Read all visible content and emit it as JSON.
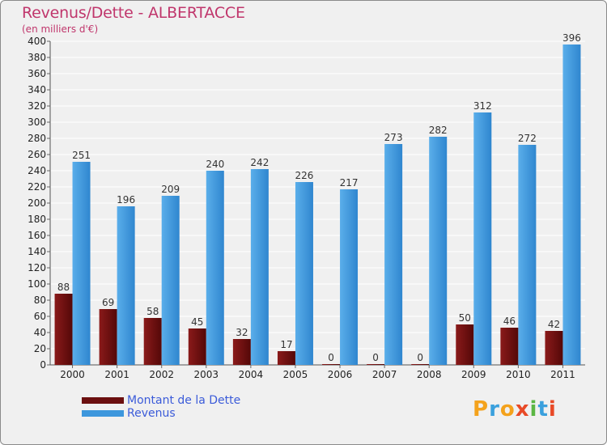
{
  "title": "Revenus/Dette - ALBERTACCE",
  "subtitle": "(en milliers d'€)",
  "logo": {
    "letters": [
      "P",
      "r",
      "o",
      "x",
      "i",
      "t",
      "i"
    ],
    "colors": [
      "#f4a21c",
      "#3aa0dd",
      "#f4a21c",
      "#e84a27",
      "#5bb644",
      "#3aa0dd",
      "#e84a27"
    ]
  },
  "legend": [
    {
      "label": "Montant de la Dette",
      "color": "#6b0f0f"
    },
    {
      "label": "Revenus",
      "color": "#3d97dd"
    }
  ],
  "chart_data": {
    "type": "bar",
    "categories": [
      "2000",
      "2001",
      "2002",
      "2003",
      "2004",
      "2005",
      "2006",
      "2007",
      "2008",
      "2009",
      "2010",
      "2011"
    ],
    "series": [
      {
        "name": "Montant de la Dette",
        "color": "#6b0f0f",
        "values": [
          88,
          69,
          58,
          45,
          32,
          17,
          0,
          0,
          0,
          50,
          46,
          42
        ]
      },
      {
        "name": "Revenus",
        "color": "#3d97dd",
        "values": [
          251,
          196,
          209,
          240,
          242,
          226,
          217,
          273,
          282,
          312,
          272,
          396
        ]
      }
    ],
    "ylim": [
      0,
      400
    ],
    "ytick_step": 20,
    "grid": true,
    "legend_position": "bottom-left"
  }
}
